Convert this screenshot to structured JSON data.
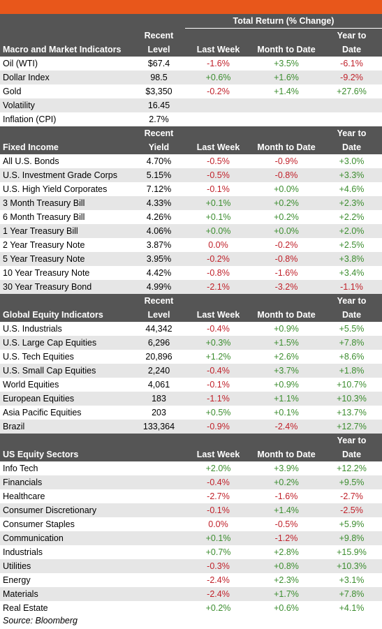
{
  "header": {
    "total_return_title": "Total Return (% Change)"
  },
  "sections": [
    {
      "title": "Macro and Market Indicators",
      "level_label_1": "Recent",
      "level_label_2": "Level",
      "col_last_week": "Last Week",
      "col_mtd": "Month to Date",
      "col_ytd_1": "Year to",
      "col_ytd_2": "Date",
      "rows": [
        {
          "name": "Oil (WTI)",
          "level": "$67.4",
          "lw": "-1.6%",
          "mtd": "+3.5%",
          "ytd": "-6.1%"
        },
        {
          "name": "Dollar Index",
          "level": "98.5",
          "lw": "+0.6%",
          "mtd": "+1.6%",
          "ytd": "-9.2%"
        },
        {
          "name": "Gold",
          "level": "$3,350",
          "lw": "-0.2%",
          "mtd": "+1.4%",
          "ytd": "+27.6%"
        },
        {
          "name": "Volatility",
          "level": "16.45",
          "lw": "",
          "mtd": "",
          "ytd": ""
        },
        {
          "name": "Inflation (CPI)",
          "level": "2.7%",
          "lw": "",
          "mtd": "",
          "ytd": ""
        }
      ]
    },
    {
      "title": "Fixed Income",
      "level_label_1": "Recent",
      "level_label_2": "Yield",
      "col_last_week": "Last Week",
      "col_mtd": "Month to Date",
      "col_ytd_1": "Year to",
      "col_ytd_2": "Date",
      "rows": [
        {
          "name": "All U.S. Bonds",
          "level": "4.70%",
          "lw": "-0.5%",
          "mtd": "-0.9%",
          "ytd": "+3.0%"
        },
        {
          "name": "U.S. Investment Grade Corps",
          "level": "5.15%",
          "lw": "-0.5%",
          "mtd": "-0.8%",
          "ytd": "+3.3%"
        },
        {
          "name": "U.S. High Yield Corporates",
          "level": "7.12%",
          "lw": "-0.1%",
          "mtd": "+0.0%",
          "ytd": "+4.6%"
        },
        {
          "name": "3 Month Treasury Bill",
          "level": "4.33%",
          "lw": "+0.1%",
          "mtd": "+0.2%",
          "ytd": "+2.3%"
        },
        {
          "name": "6 Month Treasury Bill",
          "level": "4.26%",
          "lw": "+0.1%",
          "mtd": "+0.2%",
          "ytd": "+2.2%"
        },
        {
          "name": "1 Year Treasury Bill",
          "level": "4.06%",
          "lw": "+0.0%",
          "mtd": "+0.0%",
          "ytd": "+2.0%"
        },
        {
          "name": "2 Year Treasury Note",
          "level": "3.87%",
          "lw": "0.0%",
          "mtd": "-0.2%",
          "ytd": "+2.5%"
        },
        {
          "name": "5 Year Treasury Note",
          "level": "3.95%",
          "lw": "-0.2%",
          "mtd": "-0.8%",
          "ytd": "+3.8%"
        },
        {
          "name": "10 Year Treasury Note",
          "level": "4.42%",
          "lw": "-0.8%",
          "mtd": "-1.6%",
          "ytd": "+3.4%"
        },
        {
          "name": "30 Year Treasury Bond",
          "level": "4.99%",
          "lw": "-2.1%",
          "mtd": "-3.2%",
          "ytd": "-1.1%"
        }
      ]
    },
    {
      "title": "Global Equity Indicators",
      "level_label_1": "Recent",
      "level_label_2": "Level",
      "col_last_week": "Last Week",
      "col_mtd": "Month to Date",
      "col_ytd_1": "Year to",
      "col_ytd_2": "Date",
      "rows": [
        {
          "name": "U.S. Industrials",
          "level": "44,342",
          "lw": "-0.4%",
          "mtd": "+0.9%",
          "ytd": "+5.5%"
        },
        {
          "name": "U.S. Large Cap Equities",
          "level": "6,296",
          "lw": "+0.3%",
          "mtd": "+1.5%",
          "ytd": "+7.8%"
        },
        {
          "name": "U.S. Tech Equities",
          "level": "20,896",
          "lw": "+1.2%",
          "mtd": "+2.6%",
          "ytd": "+8.6%"
        },
        {
          "name": "U.S. Small Cap Equities",
          "level": "2,240",
          "lw": "-0.4%",
          "mtd": "+3.7%",
          "ytd": "+1.8%"
        },
        {
          "name": "World Equities",
          "level": "4,061",
          "lw": "-0.1%",
          "mtd": "+0.9%",
          "ytd": "+10.7%"
        },
        {
          "name": "European Equities",
          "level": "183",
          "lw": "-1.1%",
          "mtd": "+1.1%",
          "ytd": "+10.3%"
        },
        {
          "name": "Asia Pacific Equities",
          "level": "203",
          "lw": "+0.5%",
          "mtd": "+0.1%",
          "ytd": "+13.7%"
        },
        {
          "name": "Brazil",
          "level": "133,364",
          "lw": "-0.9%",
          "mtd": "-2.4%",
          "ytd": "+12.7%"
        }
      ]
    },
    {
      "title": "US Equity Sectors",
      "level_label_1": "",
      "level_label_2": "",
      "col_last_week": "Last Week",
      "col_mtd": "Month to Date",
      "col_ytd_1": "Year to",
      "col_ytd_2": "Date",
      "rows": [
        {
          "name": "Info Tech",
          "level": "",
          "lw": "+2.0%",
          "mtd": "+3.9%",
          "ytd": "+12.2%"
        },
        {
          "name": "Financials",
          "level": "",
          "lw": "-0.4%",
          "mtd": "+0.2%",
          "ytd": "+9.5%"
        },
        {
          "name": "Healthcare",
          "level": "",
          "lw": "-2.7%",
          "mtd": "-1.6%",
          "ytd": "-2.7%"
        },
        {
          "name": "Consumer Discretionary",
          "level": "",
          "lw": "-0.1%",
          "mtd": "+1.4%",
          "ytd": "-2.5%"
        },
        {
          "name": "Consumer Staples",
          "level": "",
          "lw": "0.0%",
          "mtd": "-0.5%",
          "ytd": "+5.9%"
        },
        {
          "name": "Communication",
          "level": "",
          "lw": "+0.1%",
          "mtd": "-1.2%",
          "ytd": "+9.8%"
        },
        {
          "name": "Industrials",
          "level": "",
          "lw": "+0.7%",
          "mtd": "+2.8%",
          "ytd": "+15.9%"
        },
        {
          "name": "Utilities",
          "level": "",
          "lw": "-0.3%",
          "mtd": "+0.8%",
          "ytd": "+10.3%"
        },
        {
          "name": "Energy",
          "level": "",
          "lw": "-2.4%",
          "mtd": "+2.3%",
          "ytd": "+3.1%"
        },
        {
          "name": "Materials",
          "level": "",
          "lw": "-2.4%",
          "mtd": "+1.7%",
          "ytd": "+7.8%"
        },
        {
          "name": "Real Estate",
          "level": "",
          "lw": "+0.2%",
          "mtd": "+0.6%",
          "ytd": "+4.1%"
        }
      ]
    }
  ],
  "source": "Source: Bloomberg",
  "colors": {
    "accent_bar": "#e8571b",
    "header_bg": "#555555",
    "stripe_bg": "#e6e6e6",
    "positive": "#3c8d2f",
    "negative": "#c0212a"
  }
}
